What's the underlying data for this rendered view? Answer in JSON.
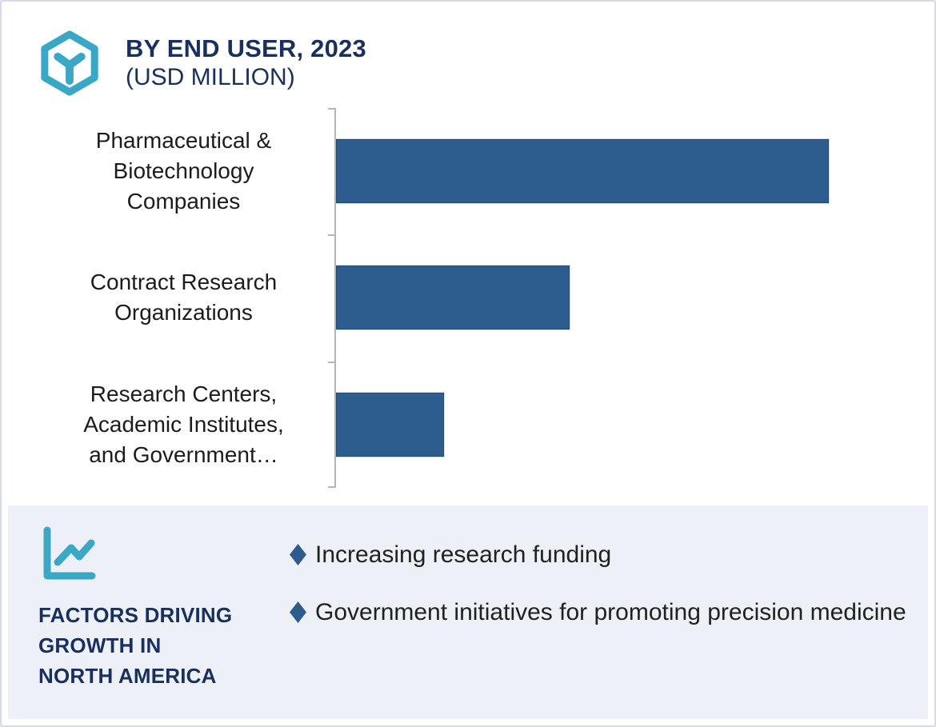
{
  "card": {
    "header": {
      "title_line1": "BY END USER, 2023",
      "title_line2": "(USD MILLION)",
      "icon": "hexagon-cube-icon"
    },
    "footer": {
      "icon": "line-chart-icon",
      "heading_lines": [
        "FACTORS DRIVING",
        "GROWTH IN",
        "NORTH AMERICA"
      ],
      "bullets": [
        "Increasing research funding",
        "Government initiatives for promoting precision medicine"
      ]
    }
  },
  "chart_data": {
    "type": "bar",
    "orientation": "horizontal",
    "title": "BY END USER, 2023 (USD MILLION)",
    "categories": [
      "Pharmaceutical & Biotechnology Companies",
      "Contract Research Organizations",
      "Research Centers, Academic Institutes, and Government…"
    ],
    "categories_lines": [
      [
        "Pharmaceutical &",
        "Biotechnology",
        "Companies"
      ],
      [
        "Contract Research",
        "Organizations"
      ],
      [
        "Research Centers,",
        "Academic Institutes,",
        "and Government…"
      ]
    ],
    "values_pct_of_max": [
      100,
      47.4,
      21.9
    ],
    "value_labels_shown": false,
    "axis_tick_labels_shown": false,
    "grid": false,
    "legend": "none",
    "bar_color": "#2d5c8e"
  },
  "colors": {
    "accent_cyan": "#3ba7c7",
    "navy": "#19305e",
    "bar_blue": "#2d5c8e",
    "panel_bg": "#edf1f7",
    "axis_gray": "#b5b5b5"
  }
}
